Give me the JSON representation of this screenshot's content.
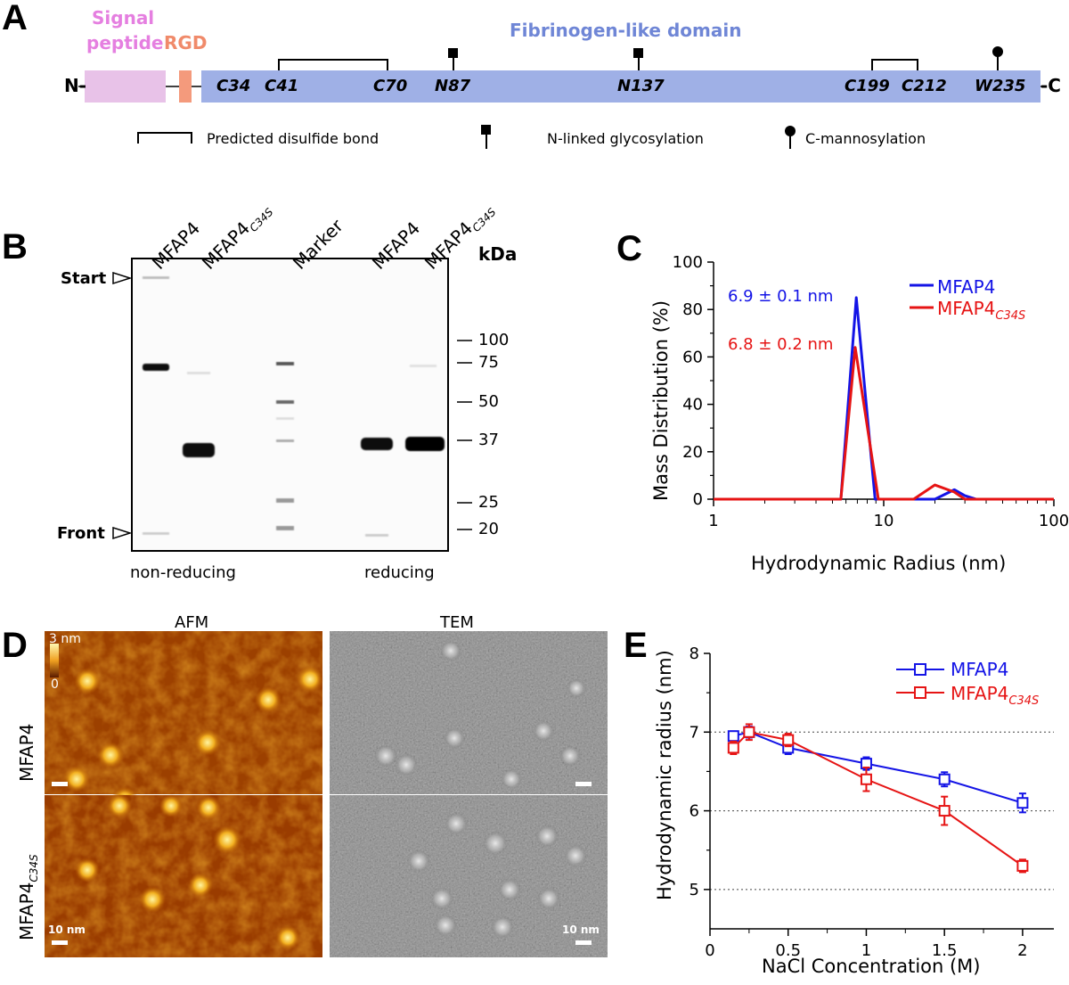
{
  "panels": {
    "a": "A",
    "b": "B",
    "c": "C",
    "d": "D",
    "e": "E"
  },
  "panel_a": {
    "n_term": "N-",
    "c_term": "-C",
    "signal_peptide": [
      "Signal",
      "peptide"
    ],
    "rgd": "RGD",
    "domain": "Fibrinogen-like domain",
    "sites": [
      "C34",
      "C41",
      "C70",
      "N87",
      "N137",
      "C199",
      "C212",
      "W235"
    ],
    "legend": {
      "disulfide": "Predicted disulfide bond",
      "nglyc": "N-linked glycosylation",
      "cman": "C-mannosylation"
    },
    "colors": {
      "signal": "#e8c2e8",
      "rgd": "#f49a7c",
      "domain": "#9fb0e6",
      "signal_text": "#e57fe0",
      "rgd_text": "#f08a6a",
      "domain_text": "#6f86d6"
    }
  },
  "panel_b": {
    "lanes": [
      {
        "base": "MFAP4",
        "sub": ""
      },
      {
        "base": "MFAP4",
        "sub": "C34S"
      },
      {
        "base": "Marker",
        "sub": ""
      },
      {
        "base": "MFAP4",
        "sub": ""
      },
      {
        "base": "MFAP4",
        "sub": "C34S"
      }
    ],
    "kda": "kDa",
    "markers": [
      "100",
      "75",
      "50",
      "37",
      "25",
      "20"
    ],
    "start": "Start",
    "front": "Front",
    "conditions": [
      "non-reducing",
      "reducing"
    ]
  },
  "panel_c": {
    "xlabel": "Hydrodynamic Radius (nm)",
    "ylabel": "Mass Distribution (%)",
    "xticks": [
      "1",
      "10",
      "100"
    ],
    "yticks": [
      "0",
      "20",
      "40",
      "60",
      "80",
      "100"
    ],
    "ann_mfap4": "6.9 ± 0.1 nm",
    "ann_c34s": "6.8 ± 0.2 nm",
    "legend": [
      {
        "base": "MFAP4",
        "sub": ""
      },
      {
        "base": "MFAP4",
        "sub": "C34S"
      }
    ]
  },
  "panel_d": {
    "col_afm": "AFM",
    "col_tem": "TEM",
    "row1": "MFAP4",
    "row2_base": "MFAP4",
    "row2_sub": "C34S",
    "scale_top": "3 nm",
    "scale_bottom": "0",
    "scalebar": "10 nm"
  },
  "panel_e": {
    "xlabel": "NaCl Concentration (M)",
    "ylabel": "Hydrodynamic radius (nm)",
    "xticks": [
      "0",
      "0.5",
      "1",
      "1.5",
      "2"
    ],
    "yticks": [
      "5",
      "6",
      "7",
      "8"
    ],
    "legend": [
      {
        "base": "MFAP4",
        "sub": ""
      },
      {
        "base": "MFAP4",
        "sub": "C34S"
      }
    ]
  },
  "chart_data": [
    {
      "type": "line",
      "xlabel": "Hydrodynamic Radius (nm)",
      "ylabel": "Mass Distribution (%)",
      "xscale": "log",
      "xlim": [
        1,
        100
      ],
      "ylim": [
        0,
        100
      ],
      "legend_position": "top-right",
      "series": [
        {
          "name": "MFAP4",
          "color": "#1414e6",
          "x": [
            1,
            5.6,
            6.9,
            8.9,
            10,
            15,
            20,
            26,
            30,
            35,
            100
          ],
          "y": [
            0,
            0,
            85,
            0,
            0,
            0,
            0,
            4,
            1.5,
            0,
            0
          ]
        },
        {
          "name": "MFAP4C34S",
          "color": "#e61414",
          "x": [
            1,
            5.6,
            6.8,
            9.3,
            10,
            15,
            20,
            26,
            30,
            35,
            100
          ],
          "y": [
            0,
            0,
            64,
            0,
            0,
            0,
            6,
            3,
            0,
            0,
            0
          ]
        }
      ]
    },
    {
      "type": "line",
      "xlabel": "NaCl Concentration (M)",
      "ylabel": "Hydrodynamic radius (nm)",
      "xlim": [
        0,
        2.2
      ],
      "ylim": [
        4.5,
        8
      ],
      "legend_position": "top-right",
      "grid": "horizontal dotted at 5, 6, 7",
      "series": [
        {
          "name": "MFAP4",
          "color": "#1414e6",
          "x": [
            0.15,
            0.25,
            0.5,
            1,
            1.5,
            2
          ],
          "y": [
            6.95,
            7.0,
            6.8,
            6.6,
            6.4,
            6.1
          ],
          "err": [
            0.06,
            0.07,
            0.08,
            0.08,
            0.09,
            0.12
          ]
        },
        {
          "name": "MFAP4C34S",
          "color": "#e61414",
          "x": [
            0.15,
            0.25,
            0.5,
            1,
            1.5,
            2
          ],
          "y": [
            6.8,
            7.0,
            6.9,
            6.4,
            6.0,
            5.3
          ],
          "err": [
            0.08,
            0.1,
            0.08,
            0.15,
            0.18,
            0.08
          ]
        }
      ]
    }
  ]
}
